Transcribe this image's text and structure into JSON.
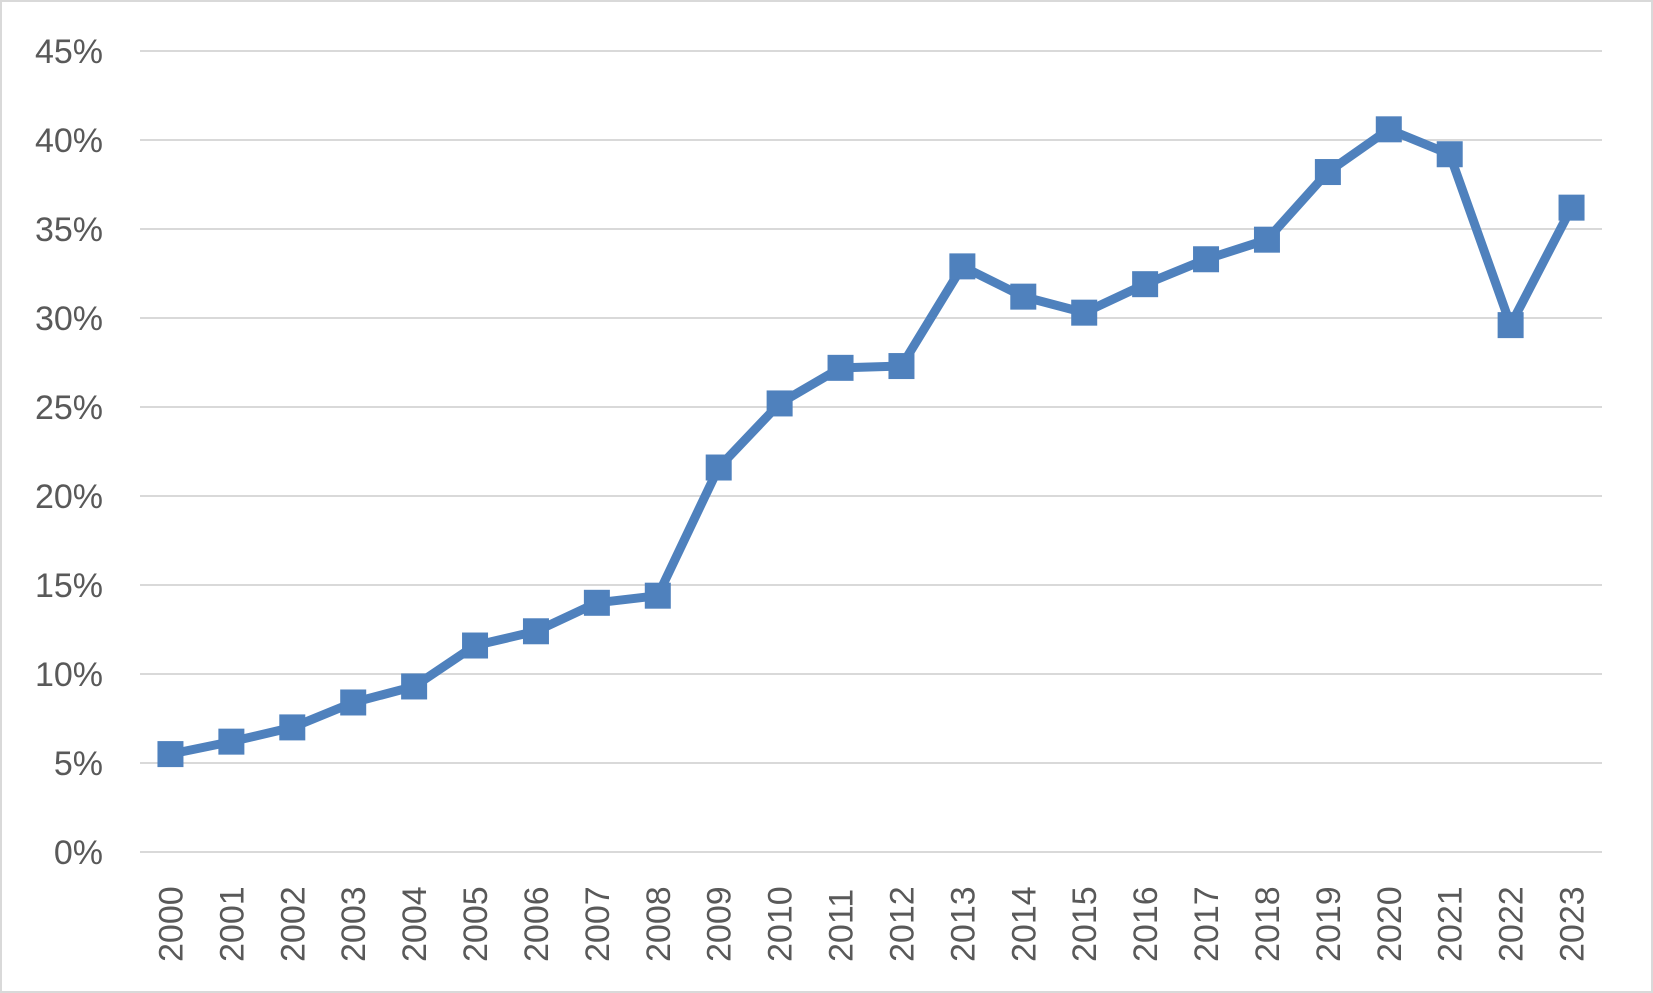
{
  "chart_data": {
    "type": "line",
    "categories": [
      "2000",
      "2001",
      "2002",
      "2003",
      "2004",
      "2005",
      "2006",
      "2007",
      "2008",
      "2009",
      "2010",
      "2011",
      "2012",
      "2013",
      "2014",
      "2015",
      "2016",
      "2017",
      "2018",
      "2019",
      "2020",
      "2021",
      "2022",
      "2023"
    ],
    "series": [
      {
        "values": [
          5.5,
          6.2,
          7.0,
          8.4,
          9.3,
          11.6,
          12.4,
          14.0,
          14.4,
          21.6,
          25.2,
          27.2,
          27.3,
          32.9,
          31.2,
          30.3,
          31.9,
          33.3,
          34.4,
          38.2,
          40.6,
          39.2,
          29.6,
          36.2
        ],
        "color": "#4f81bd",
        "marker": "square"
      }
    ],
    "y_ticks": [
      "0%",
      "5%",
      "10%",
      "15%",
      "20%",
      "25%",
      "30%",
      "35%",
      "40%",
      "45%"
    ],
    "ylim": [
      0,
      45
    ],
    "y_unit": "%",
    "grid": true,
    "legend": "none",
    "title": "",
    "xlabel": "",
    "ylabel": ""
  }
}
